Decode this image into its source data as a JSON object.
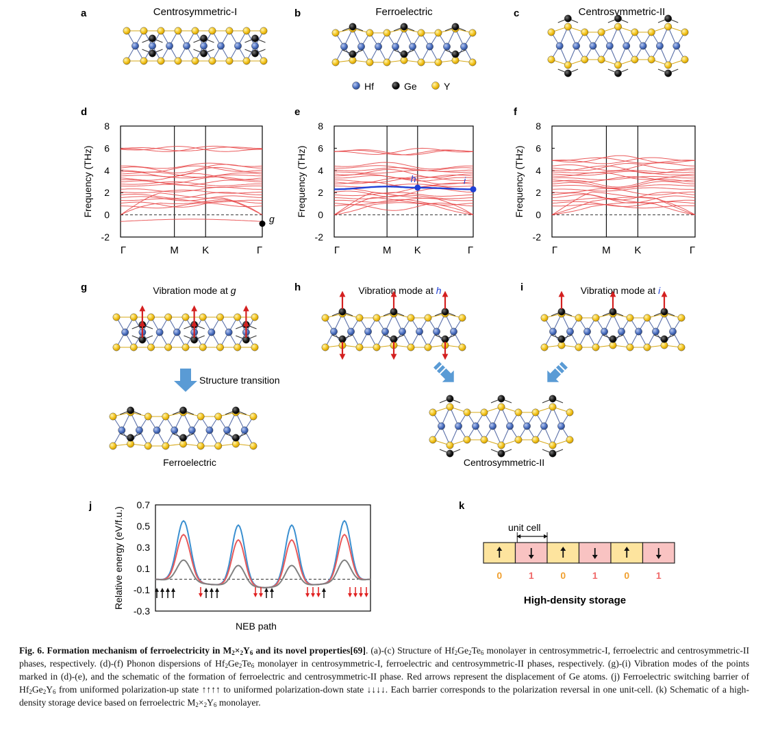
{
  "panels": {
    "a": {
      "letter": "a",
      "title": "Centrosymmetric-I"
    },
    "b": {
      "letter": "b",
      "title": "Ferroelectric"
    },
    "c": {
      "letter": "c",
      "title": "Centrosymmetric-II"
    },
    "d": {
      "letter": "d"
    },
    "e": {
      "letter": "e"
    },
    "f": {
      "letter": "f"
    },
    "g": {
      "letter": "g",
      "title": "Vibration mode at ",
      "title_point": "g"
    },
    "h": {
      "letter": "h",
      "title": "Vibration mode at ",
      "title_point": "h"
    },
    "i": {
      "letter": "i",
      "title": "Vibration mode at ",
      "title_point": "i"
    },
    "j": {
      "letter": "j"
    },
    "k": {
      "letter": "k"
    }
  },
  "legend": [
    {
      "label": "Hf",
      "color": "#4a6fc0"
    },
    {
      "label": "Ge",
      "color": "#111111"
    },
    {
      "label": "Y",
      "color": "#f2c21b"
    }
  ],
  "transition": {
    "arrow_label": "Structure transition",
    "result_left": "Ferroelectric",
    "result_right": "Centrosymmetric-II"
  },
  "chart_data": [
    {
      "type": "line",
      "panel": "d",
      "ylabel": "Frequency (THz)",
      "ylim": [
        -2,
        8
      ],
      "yticks": [
        "8",
        "6",
        "4",
        "2",
        "0",
        "-2"
      ],
      "xticks": [
        "Γ",
        "M",
        "K",
        "Γ"
      ],
      "point_labels": [
        {
          "label": "g",
          "x": "Γ",
          "y": -0.8
        }
      ],
      "band_color": "#e8494a"
    },
    {
      "type": "line",
      "panel": "e",
      "ylabel": "Frequency (THz)",
      "ylim": [
        -2,
        8
      ],
      "yticks": [
        "8",
        "6",
        "4",
        "2",
        "0",
        "-2"
      ],
      "xticks": [
        "Γ",
        "M",
        "K",
        "Γ"
      ],
      "highlight_band": {
        "color": "#1f3fd6",
        "values": [
          2.3,
          2.55,
          2.45,
          2.3
        ]
      },
      "point_labels": [
        {
          "label": "h",
          "x": "K",
          "y": 2.45
        },
        {
          "label": "i",
          "x": "Γ",
          "y": 2.3
        }
      ],
      "band_color": "#e8494a"
    },
    {
      "type": "line",
      "panel": "f",
      "ylabel": "Frequency (THz)",
      "ylim": [
        -2,
        8
      ],
      "yticks": [
        "8",
        "6",
        "4",
        "2",
        "0",
        "-2"
      ],
      "xticks": [
        "Γ",
        "M",
        "K",
        "Γ"
      ],
      "band_color": "#e8494a"
    },
    {
      "type": "line",
      "panel": "j",
      "ylabel": "Relative energy (eV/f.u.)",
      "xlabel": "NEB path",
      "ylim": [
        -0.3,
        0.7
      ],
      "yticks": [
        "0.7",
        "0.5",
        "0.3",
        "0.1",
        "-0.1",
        "-0.3"
      ],
      "series": [
        {
          "color": "#3a8fd0",
          "barriers": [
            0.55,
            0.51,
            0.51,
            0.55
          ],
          "minima": [
            0,
            -0.05,
            -0.08,
            -0.05,
            0
          ]
        },
        {
          "color": "#e8595a",
          "barriers": [
            0.42,
            0.37,
            0.37,
            0.42
          ],
          "minima": [
            0,
            -0.05,
            -0.08,
            -0.05,
            0
          ]
        },
        {
          "color": "#808080",
          "barriers": [
            0.18,
            0.13,
            0.13,
            0.18
          ],
          "minima": [
            0,
            -0.05,
            -0.08,
            -0.05,
            0
          ]
        }
      ],
      "states": [
        [
          "up",
          "up",
          "up",
          "up"
        ],
        [
          "down",
          "up",
          "up",
          "up"
        ],
        [
          "down",
          "down",
          "up",
          "up"
        ],
        [
          "down",
          "down",
          "down",
          "up"
        ],
        [
          "down",
          "down",
          "down",
          "down"
        ]
      ]
    }
  ],
  "storage": {
    "unit_cell_label": "unit cell",
    "cells": [
      {
        "dir": "up",
        "bit": "0"
      },
      {
        "dir": "down",
        "bit": "1"
      },
      {
        "dir": "up",
        "bit": "0"
      },
      {
        "dir": "down",
        "bit": "1"
      },
      {
        "dir": "up",
        "bit": "0"
      },
      {
        "dir": "down",
        "bit": "1"
      }
    ],
    "label": "High-density storage",
    "colors": {
      "up": "#fde49e",
      "down": "#f9c3c2",
      "bit0": "#f0a030",
      "bit1": "#f06a6a"
    }
  },
  "caption": {
    "fig": "Fig. 6.",
    "title_a": "Formation mechanism of ferroelectricity in M",
    "title_b": "2",
    "title_c": "×",
    "title_d": "2",
    "title_e": "Y",
    "title_f": "6",
    "title_g": " and its novel properties",
    "ref": "[69]",
    "text_1": ". (a)-(c) Structure of Hf",
    "text_2": "Ge",
    "text_3": "Te",
    "text_4": " monolayer in centrosymmetric-I, ferroelectric and centrosymmetric-II phases, respectively. (d)-(f) Phonon dispersions of Hf",
    "text_5": " monolayer in centrosymmetric-I, ferroelectric and centrosymmetric-II phases, respectively. (g)-(i) Vibration modes of the points marked in (d)-(e), and the schematic of the formation of ferroelectric and centrosymmetric-II phase. Red arrows represent the displacement of Ge atoms. (j) Ferroelectric switching barrier of Hf",
    "text_6": "Y",
    "text_7": " from uniformed polarization-up state ↑↑↑↑ to uniformed polarization-down state ↓↓↓↓. Each barrier corresponds to the polarization reversal in one unit-cell. (k) Schematic of a high-density storage device based on ferroelectric M",
    "text_8": " monolayer.",
    "sub2": "2",
    "sub6": "6",
    "times": "×"
  }
}
